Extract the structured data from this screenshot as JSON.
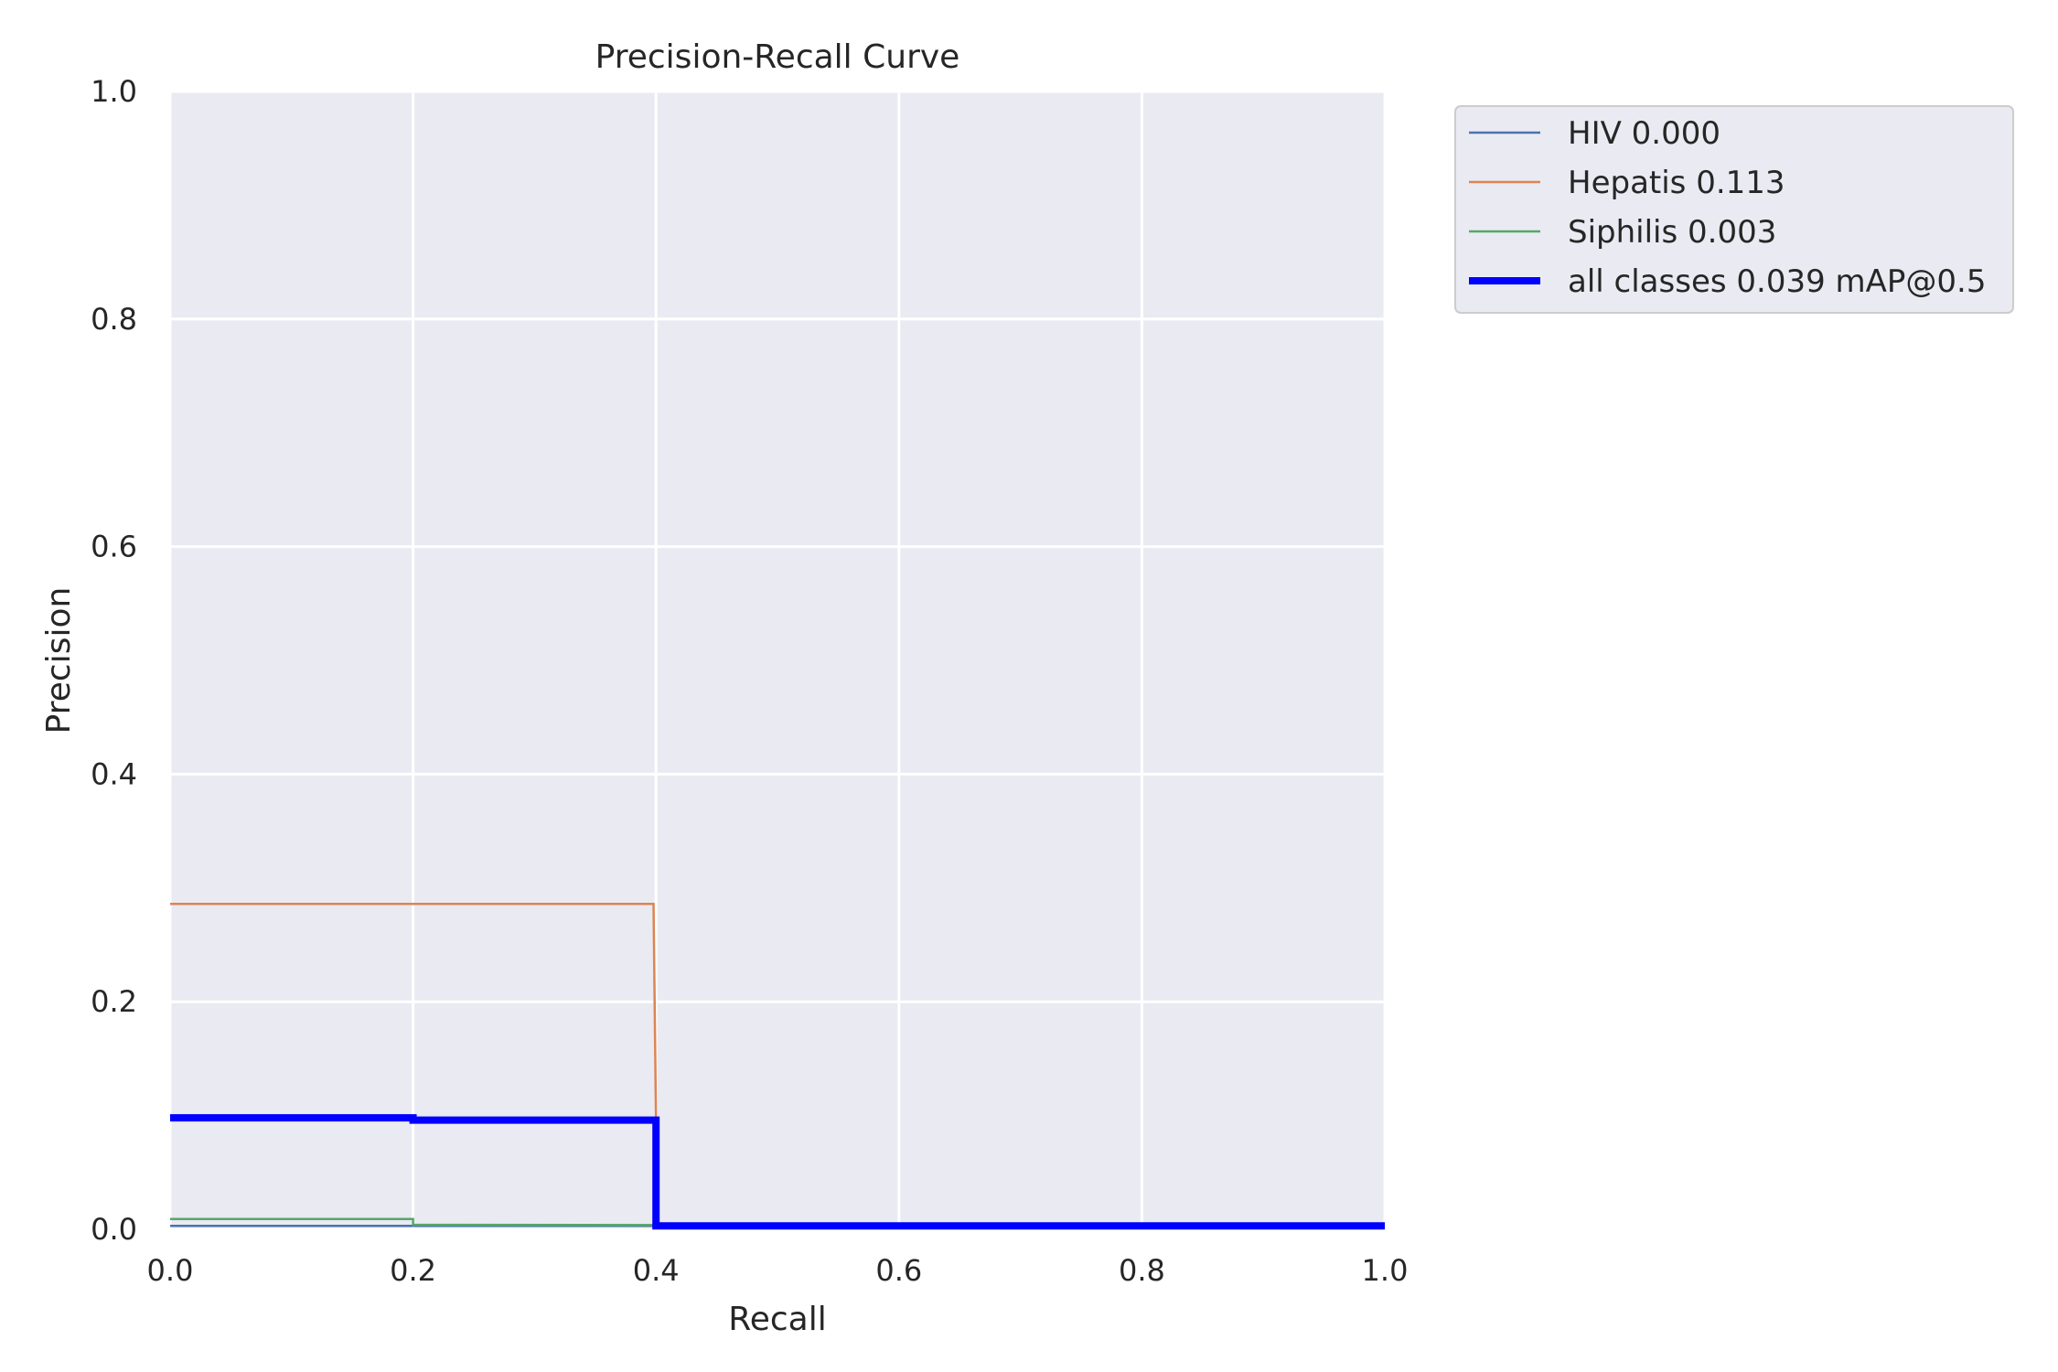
{
  "chart_data": {
    "type": "line",
    "title": "Precision-Recall Curve",
    "xlabel": "Recall",
    "ylabel": "Precision",
    "xlim": [
      0,
      1
    ],
    "ylim": [
      0,
      1
    ],
    "x_ticks": [
      "0.0",
      "0.2",
      "0.4",
      "0.6",
      "0.8",
      "1.0"
    ],
    "y_ticks": [
      "0.0",
      "0.2",
      "0.4",
      "0.6",
      "0.8",
      "1.0"
    ],
    "grid": true,
    "legend_position": "outside-top-right",
    "series": [
      {
        "name": "HIV 0.000",
        "color": "#4c72b0",
        "line_style": "thin",
        "x": [
          0.0,
          1.0
        ],
        "y": [
          0.003,
          0.003
        ]
      },
      {
        "name": "Hepatis 0.113",
        "color": "#dd8452",
        "line_style": "thin",
        "x": [
          0.0,
          0.2,
          0.398,
          0.4,
          0.4,
          1.0
        ],
        "y": [
          0.286,
          0.286,
          0.286,
          0.095,
          0.003,
          0.003
        ]
      },
      {
        "name": "Siphilis 0.003",
        "color": "#55a868",
        "line_style": "thin",
        "x": [
          0.0,
          0.2,
          0.2,
          1.0
        ],
        "y": [
          0.009,
          0.009,
          0.004,
          0.003
        ]
      },
      {
        "name": "all classes 0.039 mAP@0.5",
        "color": "#0000ff",
        "line_style": "thick",
        "x": [
          0.0,
          0.2,
          0.2,
          0.4,
          0.4,
          1.0
        ],
        "y": [
          0.098,
          0.098,
          0.096,
          0.096,
          0.003,
          0.003
        ]
      }
    ]
  }
}
